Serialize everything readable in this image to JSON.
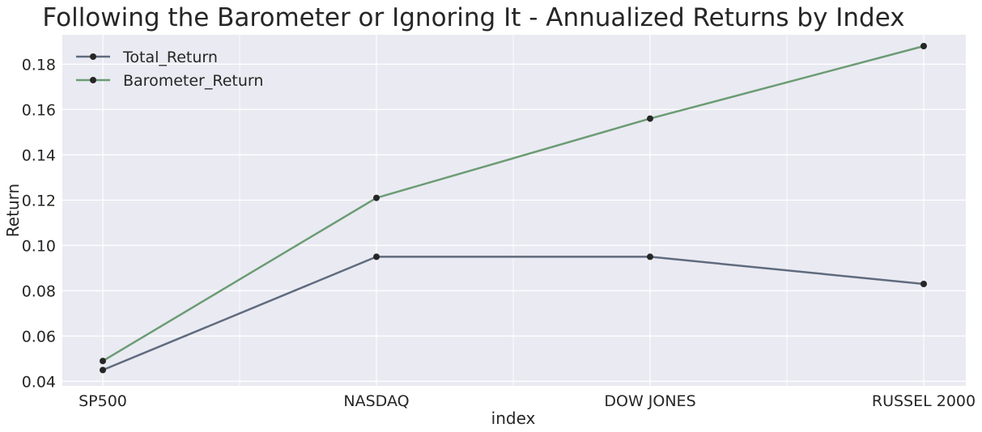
{
  "chart_data": {
    "type": "line",
    "title": "Following the Barometer or Ignoring It - Annualized Returns by Index",
    "xlabel": "index",
    "ylabel": "Return",
    "categories": [
      "SP500",
      "NASDAQ",
      "DOW JONES",
      "RUSSEL 2000"
    ],
    "ylim": [
      0.038,
      0.193
    ],
    "yticks": [
      "0.04",
      "0.06",
      "0.08",
      "0.10",
      "0.12",
      "0.14",
      "0.16",
      "0.18"
    ],
    "grid": true,
    "legend_position": "upper-left",
    "series": [
      {
        "name": "Total_Return",
        "values": [
          0.045,
          0.095,
          0.095,
          0.083
        ],
        "color": "#5f6b7e"
      },
      {
        "name": "Barometer_Return",
        "values": [
          0.049,
          0.121,
          0.156,
          0.188
        ],
        "color": "#6b9c74"
      }
    ],
    "marker_color": "#262626",
    "plot_background": "#eaeaf2",
    "grid_color": "#ffffff"
  }
}
